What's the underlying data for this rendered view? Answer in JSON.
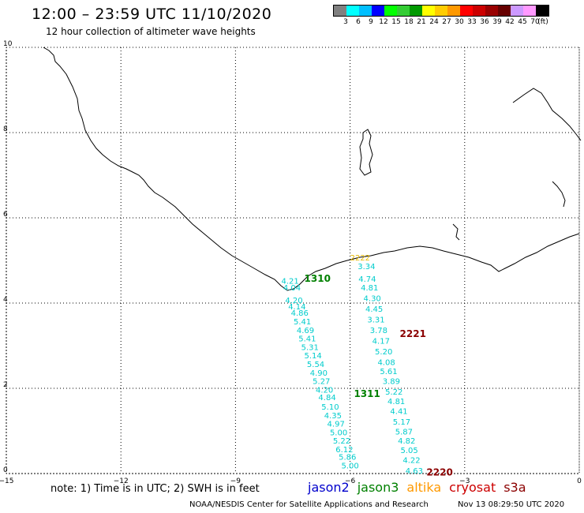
{
  "header": {
    "title": "12:00 – 23:59 UTC 11/10/2020",
    "subtitle": "12 hour collection of altimeter wave heights"
  },
  "colorbar": {
    "colors": [
      "#808080",
      "#00ffff",
      "#00bfff",
      "#0000ff",
      "#00ff00",
      "#33cc33",
      "#009900",
      "#ffff00",
      "#ffcc00",
      "#ff9900",
      "#ff0000",
      "#cc0000",
      "#990000",
      "#660000",
      "#cc99ff",
      "#ff99ff",
      "#000000"
    ],
    "labels": [
      "3",
      "6",
      "9",
      "12",
      "15",
      "18",
      "21",
      "24",
      "27",
      "30",
      "33",
      "36",
      "39",
      "42",
      "45",
      "70",
      "(ft)"
    ]
  },
  "axes": {
    "x_ticks": [
      "−15",
      "−12",
      "−9",
      "−6",
      "−3",
      "0"
    ],
    "y_ticks": [
      "0",
      "2",
      "4",
      "6",
      "8",
      "10"
    ],
    "xlim": [
      -15,
      0
    ],
    "ylim": [
      0,
      10
    ]
  },
  "passes": [
    {
      "satellite": "jason3",
      "label": "1310",
      "lon": -7.2,
      "lat": 4.5
    },
    {
      "satellite": "jason3",
      "label": "1311",
      "lon": -5.9,
      "lat": 1.8
    },
    {
      "satellite": "cryosat",
      "label": "2221",
      "lon": -4.7,
      "lat": 3.2
    },
    {
      "satellite": "cryosat",
      "label": "2220",
      "lon": -4.0,
      "lat": -0.05
    },
    {
      "satellite": "altika",
      "label": "2222",
      "lon": -6.0,
      "lat": 5.0
    }
  ],
  "wave_heights": {
    "track_a": [
      {
        "lon": -7.8,
        "lat": 4.45,
        "v": "4.21"
      },
      {
        "lon": -7.75,
        "lat": 4.3,
        "v": "4.04"
      },
      {
        "lon": -7.7,
        "lat": 4.0,
        "v": "4.20"
      },
      {
        "lon": -7.62,
        "lat": 3.85,
        "v": "4.14"
      },
      {
        "lon": -7.55,
        "lat": 3.7,
        "v": "4.86"
      },
      {
        "lon": -7.48,
        "lat": 3.5,
        "v": "5.41"
      },
      {
        "lon": -7.4,
        "lat": 3.3,
        "v": "4.69"
      },
      {
        "lon": -7.35,
        "lat": 3.1,
        "v": "5.41"
      },
      {
        "lon": -7.28,
        "lat": 2.9,
        "v": "5.31"
      },
      {
        "lon": -7.2,
        "lat": 2.7,
        "v": "5.14"
      },
      {
        "lon": -7.13,
        "lat": 2.5,
        "v": "5.54"
      },
      {
        "lon": -7.05,
        "lat": 2.3,
        "v": "4.90"
      },
      {
        "lon": -6.98,
        "lat": 2.1,
        "v": "5.27"
      },
      {
        "lon": -6.9,
        "lat": 1.9,
        "v": "4.20"
      },
      {
        "lon": -6.83,
        "lat": 1.72,
        "v": "4.84"
      },
      {
        "lon": -6.75,
        "lat": 1.5,
        "v": "5.10"
      },
      {
        "lon": -6.68,
        "lat": 1.3,
        "v": "4.35"
      },
      {
        "lon": -6.6,
        "lat": 1.1,
        "v": "4.97"
      },
      {
        "lon": -6.53,
        "lat": 0.9,
        "v": "5.00"
      },
      {
        "lon": -6.45,
        "lat": 0.7,
        "v": "5.22"
      },
      {
        "lon": -6.38,
        "lat": 0.5,
        "v": "6.12"
      },
      {
        "lon": -6.3,
        "lat": 0.32,
        "v": "5.86"
      },
      {
        "lon": -6.23,
        "lat": 0.12,
        "v": "5.00"
      }
    ],
    "track_b": [
      {
        "lon": -5.8,
        "lat": 4.8,
        "v": "3.34"
      },
      {
        "lon": -5.78,
        "lat": 4.5,
        "v": "4.74"
      },
      {
        "lon": -5.72,
        "lat": 4.3,
        "v": "4.81"
      },
      {
        "lon": -5.65,
        "lat": 4.05,
        "v": "4.30"
      },
      {
        "lon": -5.6,
        "lat": 3.8,
        "v": "4.45"
      },
      {
        "lon": -5.55,
        "lat": 3.55,
        "v": "3.31"
      },
      {
        "lon": -5.48,
        "lat": 3.3,
        "v": "3.78"
      },
      {
        "lon": -5.42,
        "lat": 3.05,
        "v": "4.17"
      },
      {
        "lon": -5.35,
        "lat": 2.8,
        "v": "5.20"
      },
      {
        "lon": -5.28,
        "lat": 2.55,
        "v": "4.08"
      },
      {
        "lon": -5.22,
        "lat": 2.33,
        "v": "5.61"
      },
      {
        "lon": -5.15,
        "lat": 2.1,
        "v": "3.89"
      },
      {
        "lon": -5.08,
        "lat": 1.85,
        "v": "5.22"
      },
      {
        "lon": -5.02,
        "lat": 1.63,
        "v": "4.81"
      },
      {
        "lon": -4.95,
        "lat": 1.4,
        "v": "4.41"
      },
      {
        "lon": -4.88,
        "lat": 1.15,
        "v": "5.17"
      },
      {
        "lon": -4.82,
        "lat": 0.92,
        "v": "5.87"
      },
      {
        "lon": -4.75,
        "lat": 0.7,
        "v": "4.82"
      },
      {
        "lon": -4.68,
        "lat": 0.48,
        "v": "5.05"
      },
      {
        "lon": -4.62,
        "lat": 0.25,
        "v": "4.22"
      },
      {
        "lon": -4.55,
        "lat": 0.0,
        "v": "4.63"
      }
    ]
  },
  "note": "note: 1) Time is in UTC; 2) SWH is in feet",
  "legend": [
    {
      "name": "jason2",
      "color": "#0000cc"
    },
    {
      "name": "jason3",
      "color": "#008000"
    },
    {
      "name": "altika",
      "color": "#ff9900"
    },
    {
      "name": "cryosat",
      "color": "#cc0000"
    },
    {
      "name": "s3a",
      "color": "#8b0000"
    }
  ],
  "footer": {
    "left": "NOAA/NESDIS Center for Satellite Applications and Research",
    "right": "Nov 13 08:29:50 UTC 2020"
  }
}
